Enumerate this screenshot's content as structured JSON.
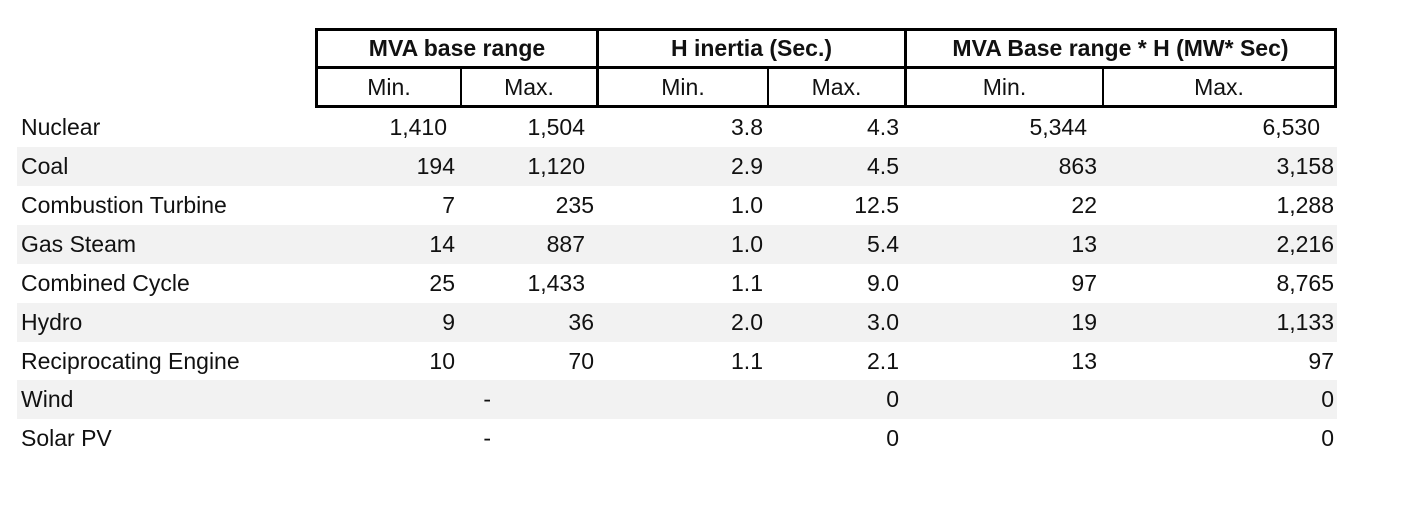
{
  "header": {
    "groups": [
      "MVA base range",
      "H inertia (Sec.)",
      "MVA Base range * H (MW* Sec)"
    ],
    "subheaders": [
      "Min.",
      "Max.",
      "Min.",
      "Max.",
      "Min.",
      "Max."
    ]
  },
  "rows": [
    {
      "label": "Nuclear",
      "mva_min": "1,410",
      "mva_max": "1,504",
      "h_min": "3.8",
      "h_max": "4.3",
      "prod_min": "5,344",
      "prod_max": "6,530"
    },
    {
      "label": "Coal",
      "mva_min": "194",
      "mva_max": "1,120",
      "h_min": "2.9",
      "h_max": "4.5",
      "prod_min": "863",
      "prod_max": "3,158"
    },
    {
      "label": "Combustion Turbine",
      "mva_min": "7",
      "mva_max": "235",
      "h_min": "1.0",
      "h_max": "12.5",
      "prod_min": "22",
      "prod_max": "1,288"
    },
    {
      "label": "Gas Steam",
      "mva_min": "14",
      "mva_max": "887",
      "h_min": "1.0",
      "h_max": "5.4",
      "prod_min": "13",
      "prod_max": "2,216"
    },
    {
      "label": "Combined Cycle",
      "mva_min": "25",
      "mva_max": "1,433",
      "h_min": "1.1",
      "h_max": "9.0",
      "prod_min": "97",
      "prod_max": "8,765"
    },
    {
      "label": "Hydro",
      "mva_min": "9",
      "mva_max": "36",
      "h_min": "2.0",
      "h_max": "3.0",
      "prod_min": "19",
      "prod_max": "1,133"
    },
    {
      "label": "Reciprocating Engine",
      "mva_min": "10",
      "mva_max": "70",
      "h_min": "1.1",
      "h_max": "2.1",
      "prod_min": "13",
      "prod_max": "97"
    },
    {
      "label": "Wind",
      "mva_min": "-",
      "mva_max": "",
      "h_min": "",
      "h_max": "0",
      "prod_min": "",
      "prod_max": "0"
    },
    {
      "label": "Solar PV",
      "mva_min": "-",
      "mva_max": "",
      "h_min": "",
      "h_max": "0",
      "prod_min": "",
      "prod_max": "0"
    }
  ]
}
